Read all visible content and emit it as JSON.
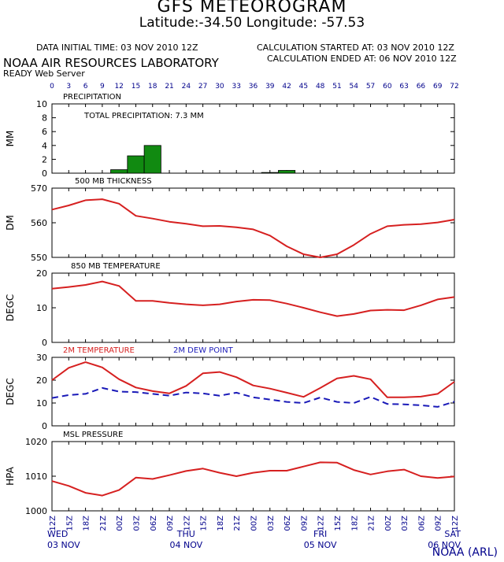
{
  "header": {
    "title": "GFS METEOROGRAM",
    "latlon": "Latitude:-34.50  Longitude: -57.53",
    "data_initial": "DATA INITIAL TIME: 03 NOV 2010 12Z",
    "calc_started": "CALCULATION STARTED AT: 03 NOV 2010 12Z",
    "calc_ended": "CALCULATION ENDED AT: 06 NOV 2010 12Z",
    "lab": "NOAA AIR RESOURCES LABORATORY",
    "ready": "READY Web Server",
    "footer": "NOAA (ARL)"
  },
  "colors": {
    "red": "#d62020",
    "blue": "#1a1ab8",
    "green": "#118a11",
    "navy": "#00008b"
  },
  "chart_data": {
    "type": "line",
    "x_hours": [
      0,
      3,
      6,
      9,
      12,
      15,
      18,
      21,
      24,
      27,
      30,
      33,
      36,
      39,
      42,
      45,
      48,
      51,
      54,
      57,
      60,
      63,
      66,
      69,
      72
    ],
    "x_hour_ticks": [
      "0",
      "3",
      "6",
      "9",
      "12",
      "15",
      "18",
      "21",
      "24",
      "27",
      "30",
      "33",
      "36",
      "39",
      "42",
      "45",
      "48",
      "51",
      "54",
      "57",
      "60",
      "63",
      "66",
      "69",
      "72"
    ],
    "x_time_labels": [
      "12Z",
      "15Z",
      "18Z",
      "21Z",
      "00Z",
      "03Z",
      "06Z",
      "09Z",
      "12Z",
      "15Z",
      "18Z",
      "21Z",
      "00Z",
      "03Z",
      "06Z",
      "09Z",
      "12Z",
      "15Z",
      "18Z",
      "21Z",
      "00Z",
      "03Z",
      "06Z",
      "09Z",
      "12Z"
    ],
    "day_labels": [
      {
        "day": "WED",
        "date": "03 NOV",
        "hour": 0
      },
      {
        "day": "THU",
        "date": "04 NOV",
        "hour": 24
      },
      {
        "day": "FRI",
        "date": "05 NOV",
        "hour": 48
      },
      {
        "day": "SAT",
        "date": "06 NOV",
        "hour": 72
      }
    ],
    "panels": [
      {
        "id": "precip",
        "type": "bar",
        "title": "PRECIPITATION",
        "ylabel": "MM",
        "note": "TOTAL PRECIPITATION:  7.3 MM",
        "ylim": [
          0,
          10
        ],
        "yticks": [
          0,
          2,
          4,
          6,
          8,
          10
        ],
        "bars": [
          {
            "start": 10.5,
            "end": 13.5,
            "value": 0.5
          },
          {
            "start": 13.5,
            "end": 16.5,
            "value": 2.5
          },
          {
            "start": 16.5,
            "end": 19.5,
            "value": 4.0
          },
          {
            "start": 37.5,
            "end": 40.5,
            "value": 0.1
          },
          {
            "start": 40.5,
            "end": 43.5,
            "value": 0.4
          }
        ]
      },
      {
        "id": "thickness",
        "type": "line",
        "title": "500 MB  THICKNESS",
        "ylabel": "DM",
        "ylim": [
          550,
          570
        ],
        "yticks": [
          550,
          560,
          570
        ],
        "series": [
          {
            "name": "",
            "color": "red",
            "values": [
              563.8,
              565.0,
              566.5,
              566.8,
              565.5,
              562.0,
              561.2,
              560.3,
              559.7,
              559.0,
              559.1,
              558.7,
              558.1,
              556.3,
              553.2,
              550.9,
              550.0,
              550.9,
              553.6,
              556.8,
              559.0,
              559.4,
              559.6,
              560.1,
              560.9
            ]
          }
        ]
      },
      {
        "id": "t850",
        "type": "line",
        "title": "850 MB  TEMPERATURE",
        "ylabel": "DEGC",
        "ylim": [
          0,
          20
        ],
        "yticks": [
          0,
          10,
          20
        ],
        "series": [
          {
            "name": "",
            "color": "red",
            "values": [
              15.5,
              16.0,
              16.6,
              17.6,
              16.3,
              12.0,
              12.0,
              11.4,
              11.0,
              10.7,
              11.0,
              11.8,
              12.3,
              12.2,
              11.2,
              10.0,
              8.7,
              7.6,
              8.2,
              9.2,
              9.4,
              9.3,
              10.7,
              12.4,
              13.1
            ]
          }
        ]
      },
      {
        "id": "t2m",
        "type": "line",
        "title": "2M TEMPERATURE",
        "title2": "2M  DEW POINT",
        "ylabel": "DEGC",
        "ylim": [
          0,
          30
        ],
        "yticks": [
          0,
          10,
          20,
          30
        ],
        "series": [
          {
            "name": "2M TEMPERATURE",
            "color": "red",
            "dash": false,
            "values": [
              20.0,
              25.4,
              27.9,
              25.6,
              20.4,
              16.8,
              15.2,
              14.2,
              17.5,
              23.0,
              23.6,
              21.3,
              17.7,
              16.3,
              14.5,
              12.7,
              16.6,
              20.8,
              21.9,
              20.4,
              12.5,
              12.5,
              12.8,
              14.0,
              19.3
            ]
          },
          {
            "name": "2M  DEW POINT",
            "color": "blue",
            "dash": true,
            "values": [
              12.2,
              13.5,
              14.0,
              16.6,
              15.0,
              14.8,
              14.0,
              13.2,
              14.6,
              14.2,
              13.2,
              14.5,
              12.5,
              11.5,
              10.5,
              10.0,
              12.4,
              10.5,
              10.0,
              12.7,
              9.6,
              9.4,
              9.0,
              8.3,
              10.6
            ]
          }
        ]
      },
      {
        "id": "msl",
        "type": "line",
        "title": "MSL PRESSURE",
        "ylabel": "HPA",
        "ylim": [
          1000,
          1020
        ],
        "yticks": [
          1000,
          1010,
          1020
        ],
        "series": [
          {
            "name": "",
            "color": "red",
            "values": [
              1008.6,
              1007.2,
              1005.2,
              1004.4,
              1006.0,
              1009.6,
              1009.2,
              1010.3,
              1011.5,
              1012.2,
              1011.0,
              1010.0,
              1011.0,
              1011.6,
              1011.6,
              1012.8,
              1014.0,
              1013.9,
              1011.8,
              1010.5,
              1011.4,
              1011.9,
              1010.0,
              1009.5,
              1009.9
            ]
          }
        ]
      }
    ]
  }
}
